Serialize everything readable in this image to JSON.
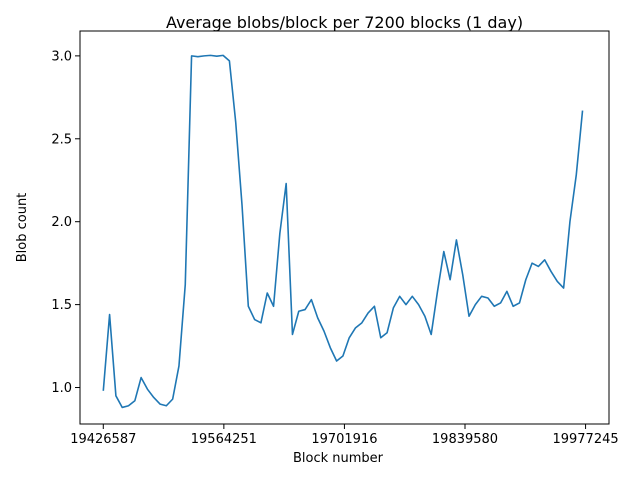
{
  "chart_data": {
    "type": "line",
    "title": "Average blobs/block per 7200 blocks (1 day)",
    "xlabel": "Block number",
    "ylabel": "Blob count",
    "xlim": [
      19400000,
      20004000
    ],
    "ylim": [
      0.78,
      3.15
    ],
    "x_ticks": [
      {
        "value": 19426587,
        "label": "19426587"
      },
      {
        "value": 19564251,
        "label": "19564251"
      },
      {
        "value": 19701916,
        "label": "19701916"
      },
      {
        "value": 19839580,
        "label": "19839580"
      },
      {
        "value": 19977245,
        "label": "19977245"
      }
    ],
    "y_ticks": [
      {
        "value": 1.0,
        "label": "1.0"
      },
      {
        "value": 1.5,
        "label": "1.5"
      },
      {
        "value": 2.0,
        "label": "2.0"
      },
      {
        "value": 2.5,
        "label": "2.5"
      },
      {
        "value": 3.0,
        "label": "3.0"
      }
    ],
    "grid": false,
    "series": [
      {
        "color": "#1f77b4",
        "x": [
          19426587,
          19433787,
          19440987,
          19448187,
          19455387,
          19462587,
          19469787,
          19476987,
          19484187,
          19491387,
          19498587,
          19505787,
          19512987,
          19520187,
          19527387,
          19534587,
          19541787,
          19548987,
          19556187,
          19563387,
          19570587,
          19577787,
          19584987,
          19592187,
          19599387,
          19606587,
          19613787,
          19620987,
          19628187,
          19635387,
          19642587,
          19649787,
          19656987,
          19664187,
          19671387,
          19678587,
          19685787,
          19692987,
          19700187,
          19707387,
          19714587,
          19721787,
          19728987,
          19736187,
          19743387,
          19750587,
          19757787,
          19764987,
          19772187,
          19779387,
          19786587,
          19793787,
          19800987,
          19808187,
          19815387,
          19822587,
          19829787,
          19836987,
          19844187,
          19851387,
          19858587,
          19865787,
          19872987,
          19880187,
          19887387,
          19894587,
          19901787,
          19908987,
          19916187,
          19923387,
          19930587,
          19937787,
          19944987,
          19952187,
          19959387,
          19966587,
          19973787
        ],
        "y": [
          0.98,
          1.44,
          0.95,
          0.88,
          0.89,
          0.92,
          1.06,
          0.99,
          0.94,
          0.9,
          0.89,
          0.93,
          1.13,
          1.62,
          3.0,
          2.995,
          3.0,
          3.003,
          2.998,
          3.003,
          2.97,
          2.6,
          2.1,
          1.49,
          1.41,
          1.39,
          1.57,
          1.49,
          1.93,
          2.23,
          1.32,
          1.46,
          1.47,
          1.53,
          1.42,
          1.34,
          1.24,
          1.16,
          1.19,
          1.3,
          1.36,
          1.39,
          1.45,
          1.49,
          1.3,
          1.33,
          1.48,
          1.55,
          1.5,
          1.55,
          1.5,
          1.43,
          1.32,
          1.58,
          1.82,
          1.65,
          1.89,
          1.68,
          1.43,
          1.5,
          1.55,
          1.54,
          1.49,
          1.51,
          1.58,
          1.49,
          1.51,
          1.65,
          1.75,
          1.73,
          1.77,
          1.7,
          1.64,
          1.6,
          2.0,
          2.28,
          2.67
        ]
      }
    ]
  }
}
